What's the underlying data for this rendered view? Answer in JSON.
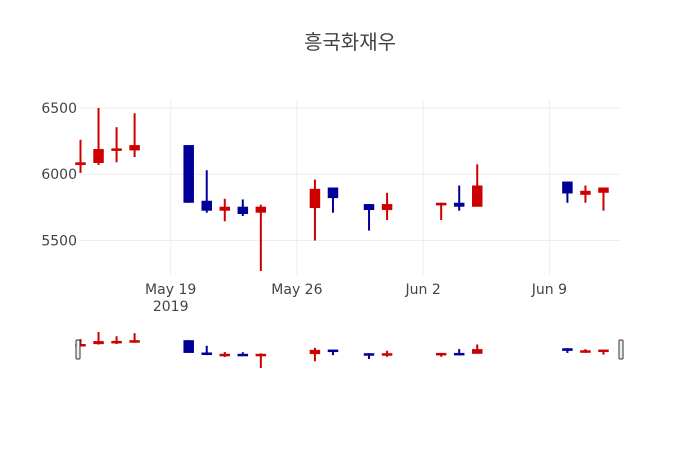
{
  "chart_data": {
    "type": "candlestick",
    "title": "흥국화재우",
    "xlabel": "",
    "ylabel": "",
    "ylim": [
      5240,
      6560
    ],
    "yticks": [
      5500,
      6000,
      6500
    ],
    "ytick_labels": [
      "5500",
      "6000",
      "6500"
    ],
    "xticks": [
      {
        "date": "2019-05-19",
        "label": "May 19",
        "sublabel": "2019"
      },
      {
        "date": "2019-05-26",
        "label": "May 26",
        "sublabel": ""
      },
      {
        "date": "2019-06-02",
        "label": "Jun 2",
        "sublabel": ""
      },
      {
        "date": "2019-06-09",
        "label": "Jun 9",
        "sublabel": ""
      }
    ],
    "xrange": [
      "2019-05-13T22:00",
      "2019-06-12T22:00"
    ],
    "grid": true,
    "legend": false,
    "rangeslider": true,
    "increasing_color": "#cc0000",
    "decreasing_color": "#000099",
    "series": [
      {
        "date": "2019-05-14",
        "open": 6070,
        "high": 6260,
        "low": 6010,
        "close": 6090
      },
      {
        "date": "2019-05-15",
        "open": 6085,
        "high": 6500,
        "low": 6070,
        "close": 6190
      },
      {
        "date": "2019-05-16",
        "open": 6185,
        "high": 6355,
        "low": 6090,
        "close": 6195
      },
      {
        "date": "2019-05-17",
        "open": 6180,
        "high": 6460,
        "low": 6130,
        "close": 6220
      },
      {
        "date": "2019-05-20",
        "open": 6220,
        "high": 6220,
        "low": 5785,
        "close": 5785
      },
      {
        "date": "2019-05-21",
        "open": 5800,
        "high": 6030,
        "low": 5710,
        "close": 5725
      },
      {
        "date": "2019-05-22",
        "open": 5725,
        "high": 5815,
        "low": 5645,
        "close": 5755
      },
      {
        "date": "2019-05-23",
        "open": 5755,
        "high": 5810,
        "low": 5685,
        "close": 5700
      },
      {
        "date": "2019-05-24",
        "open": 5710,
        "high": 5770,
        "low": 5270,
        "close": 5755
      },
      {
        "date": "2019-05-27",
        "open": 5745,
        "high": 5960,
        "low": 5500,
        "close": 5890
      },
      {
        "date": "2019-05-28",
        "open": 5900,
        "high": 5900,
        "low": 5710,
        "close": 5820
      },
      {
        "date": "2019-05-30",
        "open": 5775,
        "high": 5775,
        "low": 5575,
        "close": 5730
      },
      {
        "date": "2019-05-31",
        "open": 5730,
        "high": 5860,
        "low": 5655,
        "close": 5775
      },
      {
        "date": "2019-06-03",
        "open": 5765,
        "high": 5785,
        "low": 5655,
        "close": 5785
      },
      {
        "date": "2019-06-04",
        "open": 5785,
        "high": 5915,
        "low": 5725,
        "close": 5755
      },
      {
        "date": "2019-06-05",
        "open": 5755,
        "high": 6075,
        "low": 5755,
        "close": 5915
      },
      {
        "date": "2019-06-10",
        "open": 5945,
        "high": 5945,
        "low": 5785,
        "close": 5855
      },
      {
        "date": "2019-06-11",
        "open": 5845,
        "high": 5915,
        "low": 5785,
        "close": 5875
      },
      {
        "date": "2019-06-12",
        "open": 5860,
        "high": 5900,
        "low": 5725,
        "close": 5900
      }
    ]
  }
}
